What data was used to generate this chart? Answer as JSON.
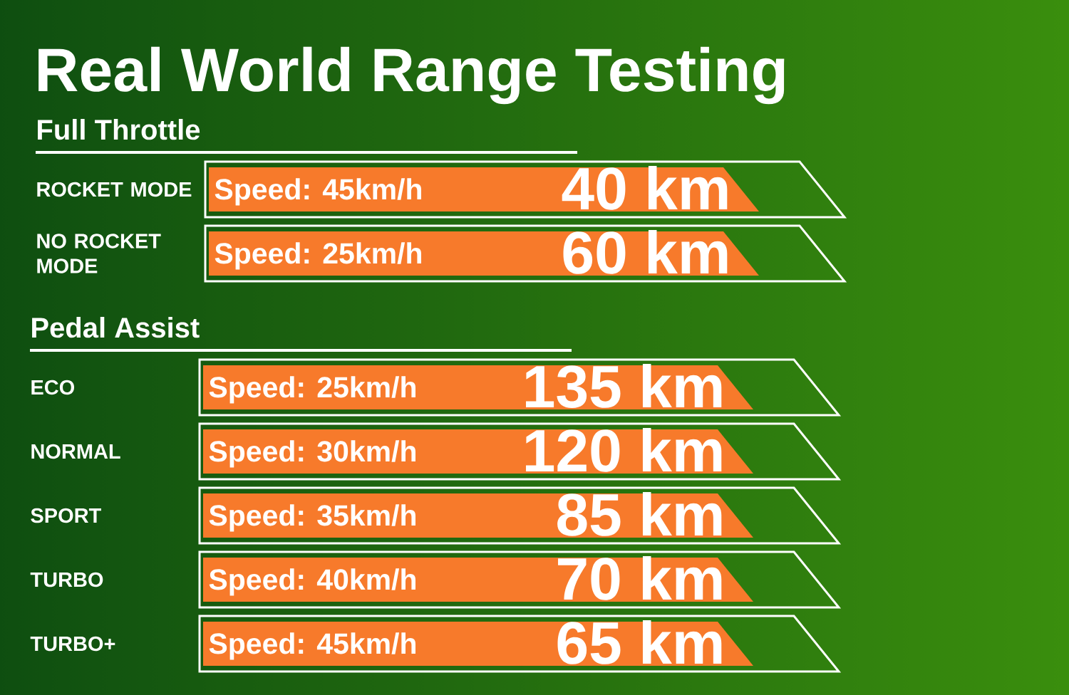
{
  "chart_data": [
    {
      "type": "other",
      "title": "Real World Range Testing",
      "subtitle": "Full Throttle",
      "categories": [
        "ROCKET MODE",
        "NO ROCKET MODE"
      ],
      "series": [
        {
          "values": [
            45,
            25
          ],
          "value_labels": [
            "Speed: 45km/h",
            "Speed: 25km/h"
          ]
        },
        {
          "color": "#f77a2b",
          "values": [
            40,
            60
          ],
          "value_labels": [
            "40 km",
            "60 km"
          ]
        }
      ]
    },
    {
      "type": "other",
      "subtitle": "Pedal Assist",
      "categories": [
        "ECO",
        "NORMAL",
        "SPORT",
        "TURBO",
        "TURBO+"
      ],
      "series": [
        {
          "values": [
            25,
            30,
            35,
            40,
            45
          ],
          "value_labels": [
            "Speed: 25km/h",
            "Speed: 30km/h",
            "Speed: 35km/h",
            "Speed: 40km/h",
            "Speed: 45km/h"
          ]
        },
        {
          "color": "#f77a2b",
          "values": [
            135,
            120,
            85,
            70,
            65
          ],
          "value_labels": [
            "135 km",
            "120 km",
            "85 km",
            "70 km",
            "65 km"
          ]
        }
      ]
    }
  ]
}
